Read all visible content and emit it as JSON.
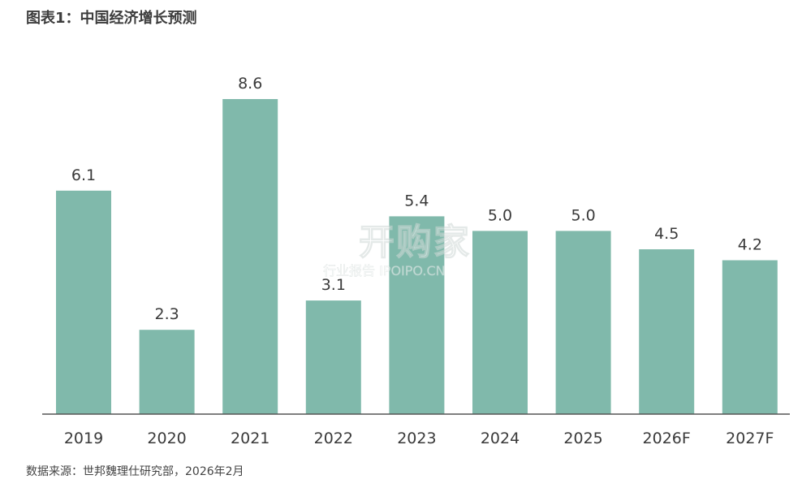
{
  "title": "图表1：中国经济增长预测",
  "source": "数据来源：世邦魏理仕研究部，2026年2月",
  "watermark": {
    "main": "开购家",
    "sub": "行业报告 IPOIPO.CN"
  },
  "colors": {
    "bar": "#80b9ab",
    "axis": "#555555",
    "text": "#3a3a3a"
  },
  "chart_data": {
    "type": "bar",
    "categories": [
      "2019",
      "2020",
      "2021",
      "2022",
      "2023",
      "2024",
      "2025",
      "2026F",
      "2027F"
    ],
    "values": [
      6.1,
      2.3,
      8.6,
      3.1,
      5.4,
      5.0,
      5.0,
      4.5,
      4.2
    ],
    "labels": [
      "6.1",
      "2.3",
      "8.6",
      "3.1",
      "5.4",
      "5.0",
      "5.0",
      "4.5",
      "4.2"
    ],
    "ylim": [
      0,
      8.6
    ],
    "grid": false,
    "legend": "none"
  }
}
